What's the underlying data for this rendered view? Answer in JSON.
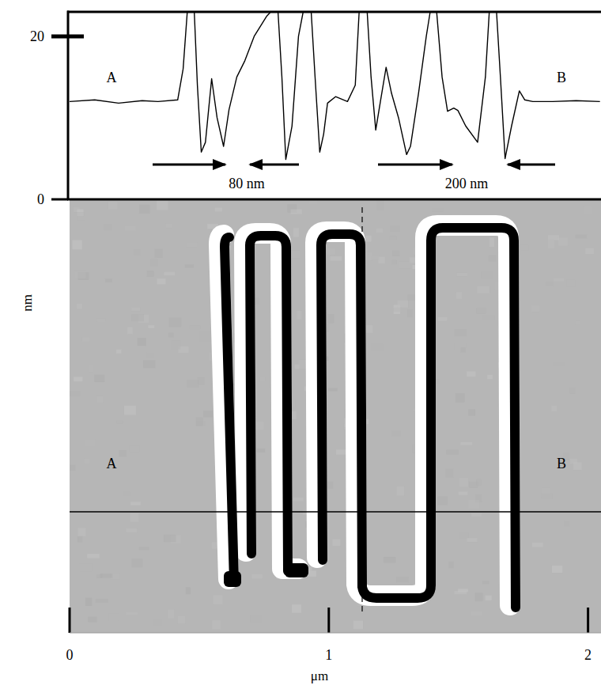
{
  "chart_data": {
    "type": "line",
    "x_label": "μm",
    "y_label": "nm",
    "color": "#000000",
    "xlim": [
      0,
      2.05
    ],
    "ylim": [
      0,
      23
    ],
    "xticks": [
      0,
      1,
      2
    ],
    "yticks": [
      0,
      20
    ],
    "x": [
      0,
      0.097,
      0.189,
      0.28,
      0.341,
      0.417,
      0.438,
      0.454,
      0.481,
      0.493,
      0.508,
      0.524,
      0.548,
      0.569,
      0.594,
      0.615,
      0.645,
      0.676,
      0.712,
      0.761,
      0.776,
      0.804,
      0.819,
      0.834,
      0.858,
      0.883,
      0.901,
      0.932,
      0.947,
      0.965,
      0.98,
      0.995,
      1.026,
      1.072,
      1.102,
      1.117,
      1.148,
      1.163,
      1.181,
      1.199,
      1.221,
      1.242,
      1.269,
      1.3,
      1.315,
      1.346,
      1.376,
      1.391,
      1.416,
      1.437,
      1.458,
      1.482,
      1.498,
      1.528,
      1.574,
      1.604,
      1.619,
      1.647,
      1.662,
      1.68,
      1.705,
      1.735,
      1.756,
      1.787,
      1.863,
      1.954,
      2.046
    ],
    "values": [
      12.0,
      12.2,
      11.8,
      12.1,
      12.0,
      12.2,
      16,
      23,
      23,
      14,
      5.8,
      7,
      14.8,
      10,
      6.5,
      11,
      15,
      17,
      20,
      22.5,
      23,
      23,
      15,
      4.9,
      9,
      20,
      23,
      23,
      15,
      5.8,
      8,
      11.8,
      12.6,
      12.0,
      14,
      23,
      23,
      15,
      8.5,
      12,
      16.2,
      13,
      10,
      5.5,
      6.5,
      13,
      20,
      23,
      23,
      15,
      10.8,
      11.2,
      10.9,
      9,
      7,
      15,
      23,
      23,
      15,
      5.0,
      9,
      13.3,
      12.2,
      12.0,
      12.0,
      12.1,
      12.0
    ],
    "annotations": [
      "80 nm",
      "200 nm"
    ],
    "endpoints": [
      "A",
      "B"
    ]
  }
}
